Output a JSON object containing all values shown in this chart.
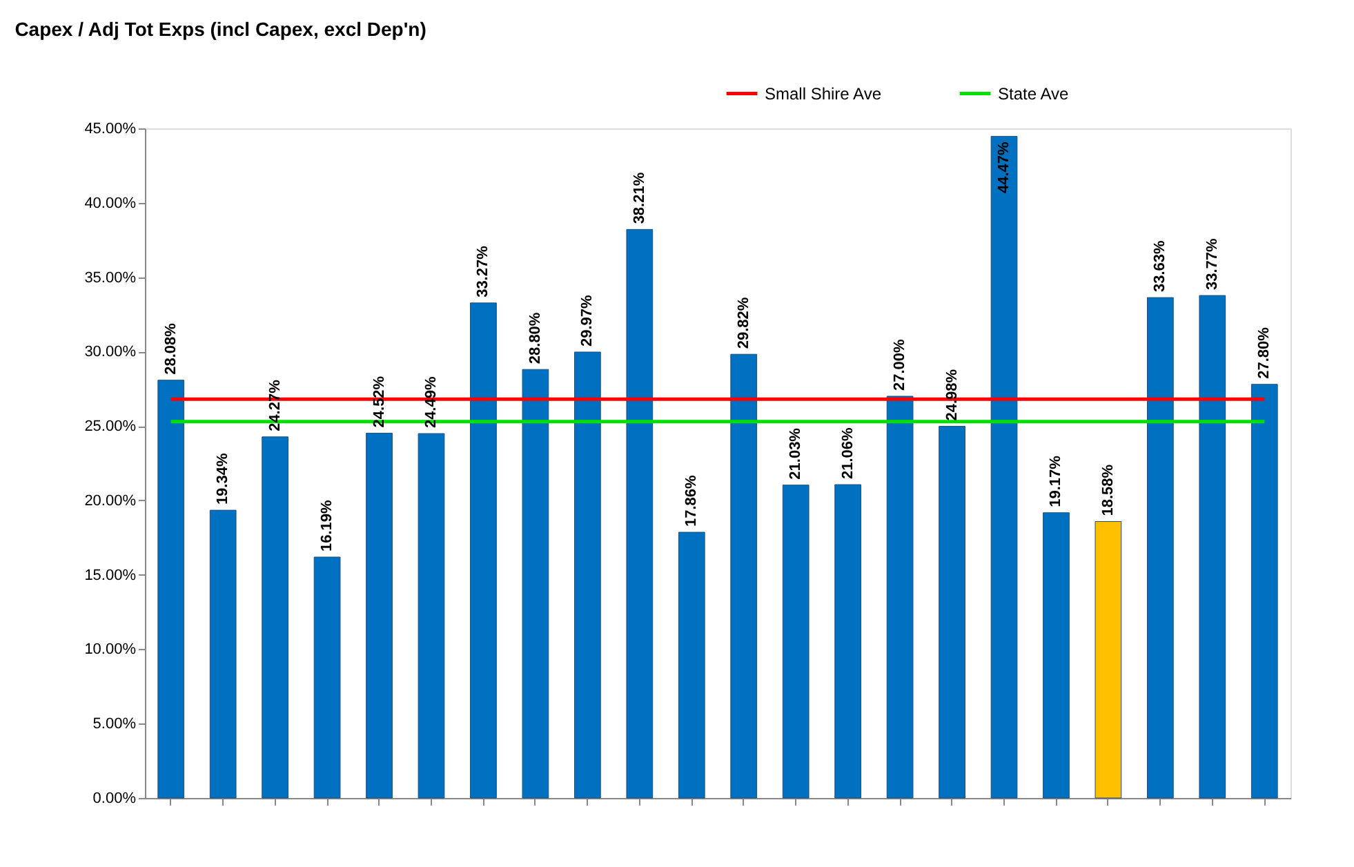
{
  "chart_data": {
    "type": "bar",
    "title": "Capex / Adj Tot Exps (incl Capex, excl Dep'n)",
    "categories": [
      null,
      null,
      null,
      null,
      null,
      null,
      null,
      null,
      null,
      null,
      null,
      null,
      null,
      null,
      null,
      null,
      null,
      null,
      null,
      null,
      null,
      null
    ],
    "values": [
      28.08,
      19.34,
      24.27,
      16.19,
      24.52,
      24.49,
      33.27,
      28.8,
      29.97,
      38.21,
      17.86,
      29.82,
      21.03,
      21.06,
      27.0,
      24.98,
      44.47,
      19.17,
      18.58,
      33.63,
      33.77,
      27.8
    ],
    "value_labels": [
      "28.08%",
      "19.34%",
      "24.27%",
      "16.19%",
      "24.52%",
      "24.49%",
      "33.27%",
      "28.80%",
      "29.97%",
      "38.21%",
      "17.86%",
      "29.82%",
      "21.03%",
      "21.06%",
      "27.00%",
      "24.98%",
      "44.47%",
      "19.17%",
      "18.58%",
      "33.63%",
      "33.77%",
      "27.80%"
    ],
    "colors": [
      "#0070c0",
      "#0070c0",
      "#0070c0",
      "#0070c0",
      "#0070c0",
      "#0070c0",
      "#0070c0",
      "#0070c0",
      "#0070c0",
      "#0070c0",
      "#0070c0",
      "#0070c0",
      "#0070c0",
      "#0070c0",
      "#0070c0",
      "#0070c0",
      "#0070c0",
      "#0070c0",
      "#ffc000",
      "#0070c0",
      "#0070c0",
      "#0070c0"
    ],
    "series": [
      {
        "name": "Small Shire Ave",
        "type": "line",
        "color": "#ff0000",
        "values": [
          26.8,
          26.8,
          26.8,
          26.8,
          26.8,
          26.8,
          26.8,
          26.8,
          26.8,
          26.8,
          26.8,
          26.8,
          26.8,
          26.8,
          26.8,
          26.8,
          26.8,
          26.8,
          26.8,
          26.8,
          26.8,
          26.8
        ]
      },
      {
        "name": "State Ave",
        "type": "line",
        "color": "#00e000",
        "values": [
          25.3,
          25.3,
          25.3,
          25.3,
          25.3,
          25.3,
          25.3,
          25.3,
          25.3,
          25.3,
          25.3,
          25.3,
          25.3,
          25.3,
          25.3,
          25.3,
          25.3,
          25.3,
          25.3,
          25.3,
          25.3,
          25.3
        ]
      }
    ],
    "ylim": [
      0,
      45
    ],
    "yticks": [
      {
        "value": 0,
        "label": "0.00%"
      },
      {
        "value": 5,
        "label": "5.00%"
      },
      {
        "value": 10,
        "label": "10.00%"
      },
      {
        "value": 15,
        "label": "15.00%"
      },
      {
        "value": 20,
        "label": "20.00%"
      },
      {
        "value": 25,
        "label": "25.00%"
      },
      {
        "value": 30,
        "label": "30.00%"
      },
      {
        "value": 35,
        "label": "35.00%"
      },
      {
        "value": 40,
        "label": "40.00%"
      },
      {
        "value": 45,
        "label": "45.00%"
      }
    ],
    "tick_labels": "y",
    "legend": "top right",
    "grid": false,
    "marker": "none",
    "line_style": "solid"
  }
}
